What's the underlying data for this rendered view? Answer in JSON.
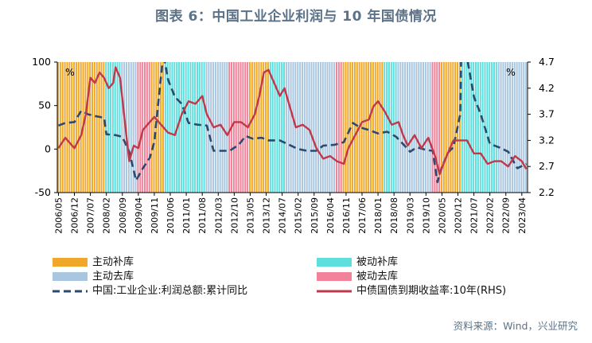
{
  "title": "图表 6：中国工业企业利润与 10 年国债情况",
  "source": "资料来源：Wind，兴业研究",
  "colors": {
    "主动补库": "#f0a82a",
    "被动补库": "#5fdede",
    "主动去库": "#a9c6e0",
    "被动去库": "#f2829a",
    "profit_line": "#2d4a6e",
    "yield_line": "#c0394b"
  },
  "chart_data": {
    "type": "line",
    "left_axis": {
      "ylim": [
        -50,
        100
      ],
      "ticks": [
        -50,
        0,
        50,
        100
      ],
      "unit_label": "%"
    },
    "right_axis": {
      "ylim": [
        2.2,
        4.7
      ],
      "ticks": [
        2.2,
        2.7,
        3.2,
        3.7,
        4.2,
        4.7
      ],
      "unit_label": "%"
    },
    "xtick_labels": [
      "2006/05",
      "2006/12",
      "2007/07",
      "2008/02",
      "2008/09",
      "2009/04",
      "2009/11",
      "2010/06",
      "2011/01",
      "2011/08",
      "2012/03",
      "2012/10",
      "2013/05",
      "2013/12",
      "2014/07",
      "2015/02",
      "2015/09",
      "2016/04",
      "2016/11",
      "2017/06",
      "2018/01",
      "2018/08",
      "2019/03",
      "2019/10",
      "2020/05",
      "2020/12",
      "2021/07",
      "2022/02",
      "2022/09",
      "2023/04"
    ],
    "inventory_phases": [
      {
        "phase": "主动补库",
        "start": "2006/05",
        "end": "2008/01"
      },
      {
        "phase": "被动补库",
        "start": "2008/02",
        "end": "2008/08"
      },
      {
        "phase": "主动去库",
        "start": "2008/09",
        "end": "2009/03"
      },
      {
        "phase": "被动去库",
        "start": "2009/04",
        "end": "2009/09"
      },
      {
        "phase": "主动补库",
        "start": "2009/10",
        "end": "2010/03"
      },
      {
        "phase": "被动补库",
        "start": "2010/04",
        "end": "2011/09"
      },
      {
        "phase": "主动去库",
        "start": "2011/10",
        "end": "2012/07"
      },
      {
        "phase": "被动去库",
        "start": "2012/08",
        "end": "2013/04"
      },
      {
        "phase": "主动补库",
        "start": "2013/05",
        "end": "2014/01"
      },
      {
        "phase": "被动补库",
        "start": "2014/02",
        "end": "2014/08"
      },
      {
        "phase": "主动去库",
        "start": "2014/09",
        "end": "2016/06"
      },
      {
        "phase": "被动去库",
        "start": "2016/07",
        "end": "2016/09"
      },
      {
        "phase": "主动补库",
        "start": "2016/10",
        "end": "2018/03"
      },
      {
        "phase": "被动补库",
        "start": "2018/04",
        "end": "2018/09"
      },
      {
        "phase": "主动去库",
        "start": "2018/10",
        "end": "2019/12"
      },
      {
        "phase": "被动去库",
        "start": "2020/01",
        "end": "2020/04"
      },
      {
        "phase": "主动补库",
        "start": "2020/05",
        "end": "2021/01"
      },
      {
        "phase": "被动补库",
        "start": "2021/02",
        "end": "2022/05"
      },
      {
        "phase": "主动去库",
        "start": "2022/06",
        "end": "2023/06"
      }
    ],
    "series": [
      {
        "name": "中国:工业企业:利润总额:累计同比",
        "axis": "left",
        "style": "dashed",
        "points": [
          [
            "2006/05",
            27
          ],
          [
            "2006/08",
            30
          ],
          [
            "2006/12",
            31
          ],
          [
            "2007/03",
            44
          ],
          [
            "2007/06",
            40
          ],
          [
            "2007/09",
            38
          ],
          [
            "2008/01",
            36
          ],
          [
            "2008/02",
            17
          ],
          [
            "2008/06",
            16
          ],
          [
            "2008/09",
            14
          ],
          [
            "2008/12",
            -3
          ],
          [
            "2009/03",
            -36
          ],
          [
            "2009/06",
            -22
          ],
          [
            "2009/09",
            -10
          ],
          [
            "2009/11",
            8
          ],
          [
            "2010/01",
            60
          ],
          [
            "2010/03",
            110
          ],
          [
            "2010/05",
            80
          ],
          [
            "2010/08",
            60
          ],
          [
            "2010/11",
            52
          ],
          [
            "2011/02",
            30
          ],
          [
            "2011/06",
            28
          ],
          [
            "2011/10",
            27
          ],
          [
            "2012/01",
            -2
          ],
          [
            "2012/04",
            -2
          ],
          [
            "2012/08",
            -2
          ],
          [
            "2012/12",
            5
          ],
          [
            "2013/03",
            15
          ],
          [
            "2013/06",
            12
          ],
          [
            "2013/10",
            13
          ],
          [
            "2014/01",
            10
          ],
          [
            "2014/06",
            10
          ],
          [
            "2014/10",
            5
          ],
          [
            "2015/02",
            0
          ],
          [
            "2015/06",
            -2
          ],
          [
            "2015/10",
            -2
          ],
          [
            "2016/01",
            4
          ],
          [
            "2016/06",
            5
          ],
          [
            "2016/10",
            8
          ],
          [
            "2017/02",
            30
          ],
          [
            "2017/05",
            25
          ],
          [
            "2017/09",
            22
          ],
          [
            "2018/01",
            18
          ],
          [
            "2018/05",
            20
          ],
          [
            "2018/09",
            14
          ],
          [
            "2019/01",
            3
          ],
          [
            "2019/03",
            -3
          ],
          [
            "2019/06",
            2
          ],
          [
            "2019/10",
            -1
          ],
          [
            "2020/01",
            -2
          ],
          [
            "2020/03",
            -38
          ],
          [
            "2020/05",
            -20
          ],
          [
            "2020/08",
            -3
          ],
          [
            "2020/10",
            2
          ],
          [
            "2021/01",
            40
          ],
          [
            "2021/02",
            200
          ],
          [
            "2021/04",
            105
          ],
          [
            "2021/07",
            60
          ],
          [
            "2021/10",
            40
          ],
          [
            "2022/02",
            6
          ],
          [
            "2022/06",
            2
          ],
          [
            "2022/10",
            -3
          ],
          [
            "2023/02",
            -22
          ],
          [
            "2023/06",
            -17
          ]
        ]
      },
      {
        "name": "中债国债到期收益率:10年(RHS)",
        "axis": "right",
        "style": "solid",
        "points": [
          [
            "2006/05",
            3.05
          ],
          [
            "2006/08",
            3.25
          ],
          [
            "2006/12",
            3.05
          ],
          [
            "2007/03",
            3.3
          ],
          [
            "2007/05",
            3.7
          ],
          [
            "2007/07",
            4.4
          ],
          [
            "2007/09",
            4.3
          ],
          [
            "2007/11",
            4.5
          ],
          [
            "2008/01",
            4.4
          ],
          [
            "2008/03",
            4.2
          ],
          [
            "2008/05",
            4.3
          ],
          [
            "2008/06",
            4.6
          ],
          [
            "2008/08",
            4.4
          ],
          [
            "2008/10",
            3.6
          ],
          [
            "2008/12",
            2.8
          ],
          [
            "2009/02",
            3.1
          ],
          [
            "2009/04",
            3.05
          ],
          [
            "2009/06",
            3.4
          ],
          [
            "2009/08",
            3.5
          ],
          [
            "2009/11",
            3.65
          ],
          [
            "2010/02",
            3.5
          ],
          [
            "2010/05",
            3.35
          ],
          [
            "2010/08",
            3.3
          ],
          [
            "2010/11",
            3.7
          ],
          [
            "2011/02",
            3.95
          ],
          [
            "2011/05",
            3.9
          ],
          [
            "2011/08",
            4.05
          ],
          [
            "2011/10",
            3.7
          ],
          [
            "2012/01",
            3.45
          ],
          [
            "2012/04",
            3.5
          ],
          [
            "2012/07",
            3.3
          ],
          [
            "2012/10",
            3.55
          ],
          [
            "2013/01",
            3.55
          ],
          [
            "2013/04",
            3.45
          ],
          [
            "2013/07",
            3.7
          ],
          [
            "2013/09",
            4.05
          ],
          [
            "2013/11",
            4.5
          ],
          [
            "2014/01",
            4.55
          ],
          [
            "2014/04",
            4.25
          ],
          [
            "2014/06",
            4.05
          ],
          [
            "2014/08",
            4.2
          ],
          [
            "2014/10",
            3.9
          ],
          [
            "2015/01",
            3.45
          ],
          [
            "2015/04",
            3.5
          ],
          [
            "2015/07",
            3.4
          ],
          [
            "2015/10",
            3.05
          ],
          [
            "2016/01",
            2.85
          ],
          [
            "2016/04",
            2.9
          ],
          [
            "2016/07",
            2.8
          ],
          [
            "2016/10",
            2.75
          ],
          [
            "2016/12",
            3.05
          ],
          [
            "2017/03",
            3.3
          ],
          [
            "2017/06",
            3.55
          ],
          [
            "2017/09",
            3.6
          ],
          [
            "2017/11",
            3.85
          ],
          [
            "2018/01",
            3.95
          ],
          [
            "2018/04",
            3.75
          ],
          [
            "2018/07",
            3.5
          ],
          [
            "2018/10",
            3.55
          ],
          [
            "2018/12",
            3.3
          ],
          [
            "2019/02",
            3.1
          ],
          [
            "2019/05",
            3.3
          ],
          [
            "2019/08",
            3.05
          ],
          [
            "2019/11",
            3.25
          ],
          [
            "2020/02",
            2.9
          ],
          [
            "2020/04",
            2.55
          ],
          [
            "2020/07",
            2.9
          ],
          [
            "2020/10",
            3.2
          ],
          [
            "2021/01",
            3.2
          ],
          [
            "2021/04",
            3.2
          ],
          [
            "2021/07",
            2.95
          ],
          [
            "2021/10",
            2.95
          ],
          [
            "2022/01",
            2.75
          ],
          [
            "2022/04",
            2.8
          ],
          [
            "2022/07",
            2.8
          ],
          [
            "2022/10",
            2.7
          ],
          [
            "2023/01",
            2.9
          ],
          [
            "2023/04",
            2.8
          ],
          [
            "2023/06",
            2.65
          ]
        ]
      }
    ],
    "legend": {
      "placement": "bottom",
      "entries": [
        {
          "label": "主动补库",
          "kind": "patch"
        },
        {
          "label": "被动补库",
          "kind": "patch"
        },
        {
          "label": "主动去库",
          "kind": "patch"
        },
        {
          "label": "被动去库",
          "kind": "patch"
        },
        {
          "label": "中国:工业企业:利润总额:累计同比",
          "kind": "dashed-line"
        },
        {
          "label": "中债国债到期收益率:10年(RHS)",
          "kind": "solid-line"
        }
      ]
    }
  }
}
